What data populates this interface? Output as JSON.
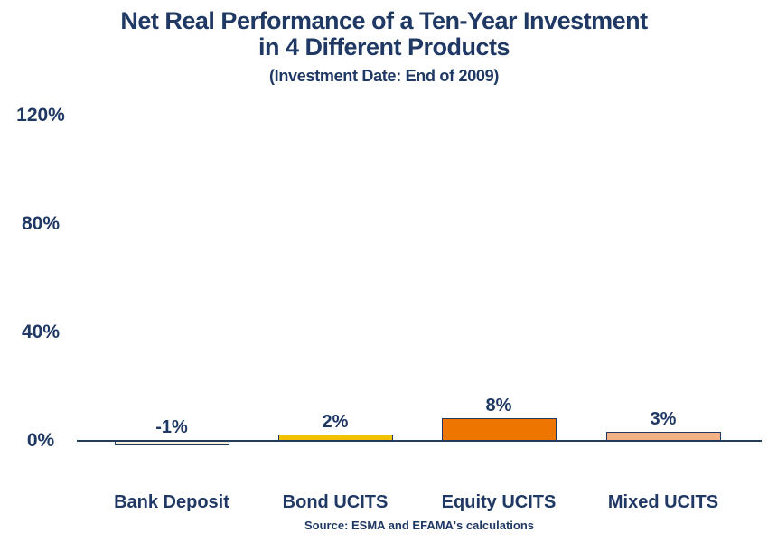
{
  "chart_data": {
    "type": "bar",
    "title": "Net Real Performance of a Ten-Year Investment in 4 Different Products",
    "title_lines": [
      "Net Real Performance of a Ten-Year Investment",
      "in 4 Different Products"
    ],
    "subtitle": "(Investment Date: End of 2009)",
    "categories": [
      "Bank Deposit",
      "Bond UCITS",
      "Equity UCITS",
      "Mixed UCITS"
    ],
    "values": [
      -1,
      2,
      8,
      3
    ],
    "value_labels": [
      "-1%",
      "2%",
      "8%",
      "3%"
    ],
    "unit": "%",
    "bar_colors": [
      "#FBF2D6",
      "#F2C101",
      "#EE7600",
      "#F4B183"
    ],
    "bar_border_color": "#1F3864",
    "axis_color": "#243A5E",
    "text_color": "#1F3864",
    "yticks": [
      {
        "value": 120,
        "label": "120%"
      },
      {
        "value": 80,
        "label": "80%"
      },
      {
        "value": 40,
        "label": "40%"
      },
      {
        "value": 0,
        "label": "0%"
      }
    ],
    "ylim": [
      -4,
      124
    ],
    "grid": false,
    "legend": false,
    "source": "Source: ESMA and EFAMA's calculations"
  }
}
